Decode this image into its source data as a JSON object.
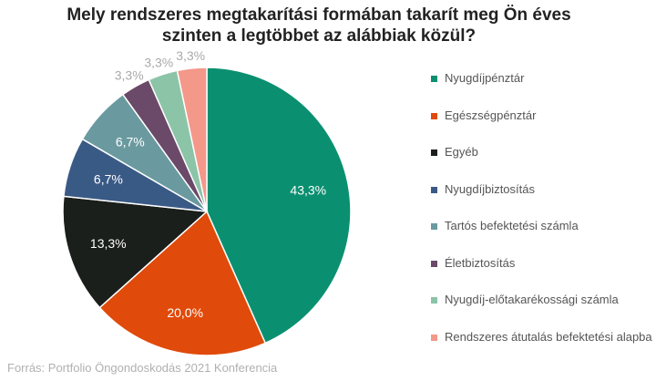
{
  "chart_data": {
    "type": "pie",
    "title": "Mely rendszeres megtakarítási formában takarít meg Ön éves szinten a legtöbbet az alábbiak közül?",
    "title_lines": [
      "Mely rendszeres megtakarítási formában takarít meg Ön éves",
      "szinten a legtöbbet az alábbiak közül?"
    ],
    "slices": [
      {
        "label": "Nyugdíjpénztár",
        "value": 43.3,
        "value_label": "43,3%",
        "color": "#0a9070",
        "label_color": "#ffffff"
      },
      {
        "label": "Egészségpénztár",
        "value": 20.0,
        "value_label": "20,0%",
        "color": "#e04a0a",
        "label_color": "#ffffff"
      },
      {
        "label": "Egyéb",
        "value": 13.3,
        "value_label": "13,3%",
        "color": "#1a1f1c",
        "label_color": "#ffffff"
      },
      {
        "label": "Nyugdíjbiztosítás",
        "value": 6.7,
        "value_label": "6,7%",
        "color": "#3a5a86",
        "label_color": "#ffffff"
      },
      {
        "label": "Tartós befektetési számla",
        "value": 6.7,
        "value_label": "6,7%",
        "color": "#6a9aa0",
        "label_color": "#ffffff"
      },
      {
        "label": "Életbiztosítás",
        "value": 3.3,
        "value_label": "3,3%",
        "color": "#6a4a68",
        "label_color": "#aaaaaa"
      },
      {
        "label": "Nyugdíj-előtakarékossági számla",
        "value": 3.3,
        "value_label": "3,3%",
        "color": "#8cc4a8",
        "label_color": "#aaaaaa"
      },
      {
        "label": "Rendszeres átutalás befektetési alapba",
        "value": 3.3,
        "value_label": "3,3%",
        "color": "#f4988a",
        "label_color": "#aaaaaa"
      }
    ],
    "legend_position": "right"
  },
  "source": "Forrás: Portfolio Öngondoskodás 2021 Konferencia"
}
